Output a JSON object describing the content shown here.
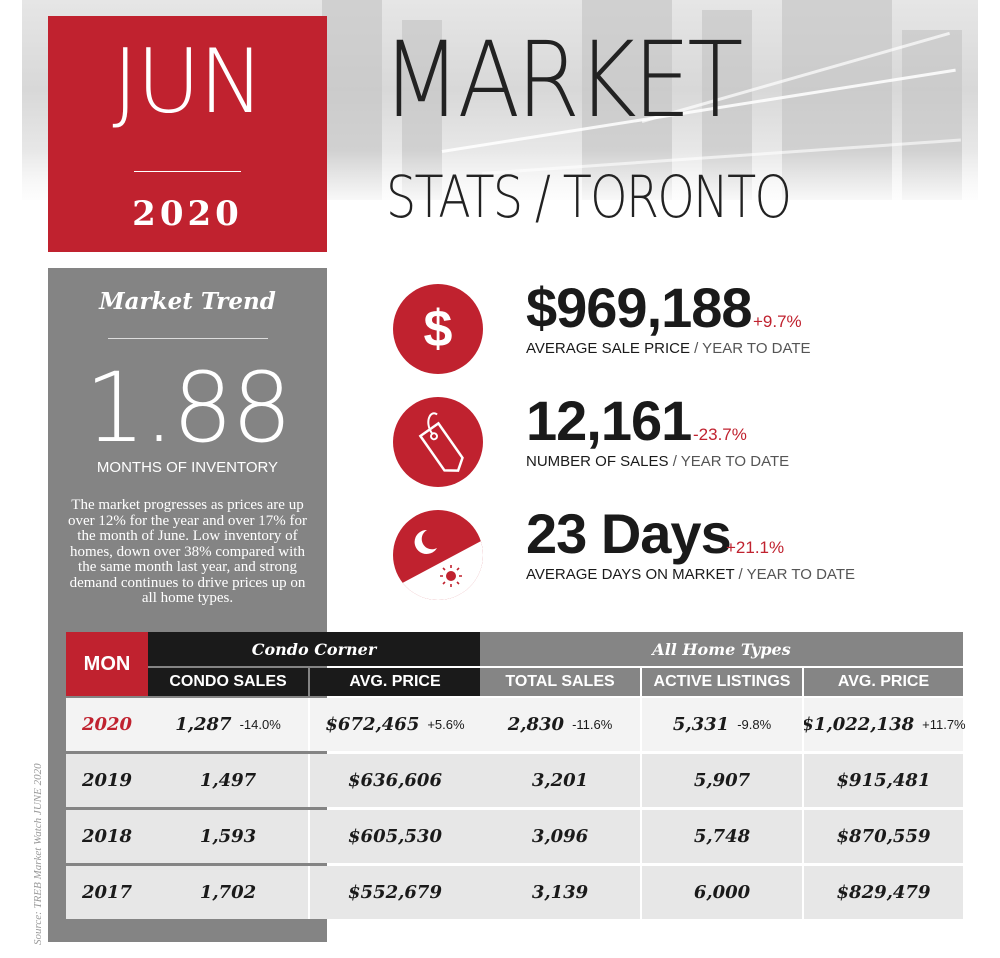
{
  "header": {
    "month": "JUN",
    "year": "2020",
    "title": "MARKET",
    "subtitle": "STATS / TORONTO"
  },
  "trend": {
    "title": "Market Trend",
    "value": "1.88",
    "label": "MONTHS OF INVENTORY",
    "description": "The market progresses as prices are up over 12% for the year and over 17% for the month of June.  Low inventory of homes, down over 38% compared with the same month last year, and strong demand continues to drive prices up on all home types."
  },
  "source": "Source: TREB Market Watch JUNE 2020",
  "stats": [
    {
      "icon": "dollar-icon",
      "value": "$969,188",
      "change": "+9.7%",
      "label": "AVERAGE SALE PRICE",
      "period": " / YEAR TO DATE"
    },
    {
      "icon": "price-tag-icon",
      "value": "12,161",
      "change": "-23.7%",
      "label": "NUMBER OF SALES",
      "period": " / YEAR TO DATE"
    },
    {
      "icon": "day-night-icon",
      "value": "23 Days",
      "change": "+21.1%",
      "label": "AVERAGE DAYS ON MARKET",
      "period": " / YEAR TO DATE"
    }
  ],
  "table": {
    "mon_header": "MON",
    "group_condo": "Condo Corner",
    "group_all": "All Home Types",
    "columns": [
      "CONDO SALES",
      "AVG. PRICE",
      "TOTAL SALES",
      "ACTIVE LISTINGS",
      "AVG. PRICE"
    ],
    "rows": [
      {
        "year": "2020",
        "cells": [
          {
            "value": "1,287",
            "change": "-14.0%"
          },
          {
            "value": "$672,465",
            "change": "+5.6%"
          },
          {
            "value": "2,830",
            "change": "-11.6%"
          },
          {
            "value": "5,331",
            "change": "-9.8%"
          },
          {
            "value": "$1,022,138",
            "change": "+11.7%"
          }
        ]
      },
      {
        "year": "2019",
        "cells": [
          {
            "value": "1,497"
          },
          {
            "value": "$636,606"
          },
          {
            "value": "3,201"
          },
          {
            "value": "5,907"
          },
          {
            "value": "$915,481"
          }
        ]
      },
      {
        "year": "2018",
        "cells": [
          {
            "value": "1,593"
          },
          {
            "value": "$605,530"
          },
          {
            "value": "3,096"
          },
          {
            "value": "5,748"
          },
          {
            "value": "$870,559"
          }
        ]
      },
      {
        "year": "2017",
        "cells": [
          {
            "value": "1,702"
          },
          {
            "value": "$552,679"
          },
          {
            "value": "3,139"
          },
          {
            "value": "6,000"
          },
          {
            "value": "$829,479"
          }
        ]
      }
    ]
  },
  "colors": {
    "accent": "#c0222f",
    "dark": "#1a1a1a",
    "grey": "#848484"
  }
}
